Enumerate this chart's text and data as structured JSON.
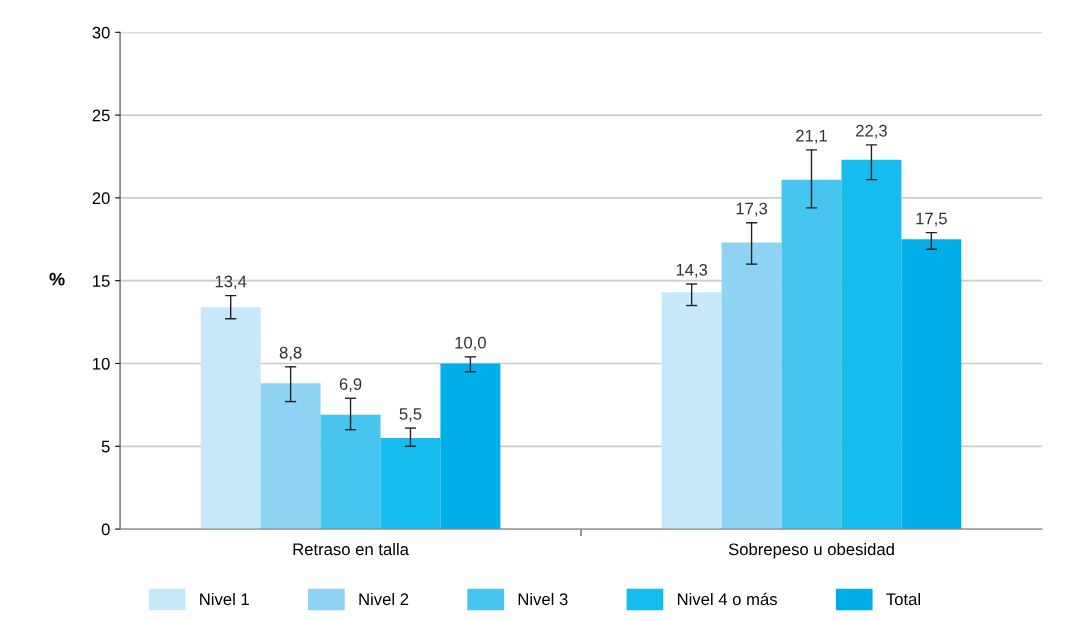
{
  "chart_data": {
    "type": "bar",
    "ylabel": "%",
    "categories": [
      "Retraso en talla",
      "Sobrepeso u obesidad"
    ],
    "series": [
      {
        "name": "Nivel 1",
        "color": "#c7e8f8",
        "values": [
          13.4,
          14.3
        ],
        "value_labels": [
          "13,4",
          "14,3"
        ],
        "errors": [
          [
            12.7,
            14.1
          ],
          [
            13.5,
            14.8
          ]
        ]
      },
      {
        "name": "Nivel 2",
        "color": "#8fd3f4",
        "values": [
          8.8,
          17.3
        ],
        "value_labels": [
          "8,8",
          "17,3"
        ],
        "errors": [
          [
            7.7,
            9.8
          ],
          [
            16.0,
            18.5
          ]
        ]
      },
      {
        "name": "Nivel 3",
        "color": "#45c5f0",
        "values": [
          6.9,
          21.1
        ],
        "value_labels": [
          "6,9",
          "21,1"
        ],
        "errors": [
          [
            6.0,
            7.9
          ],
          [
            19.4,
            22.9
          ]
        ]
      },
      {
        "name": "Nivel 4 o más",
        "color": "#17bcef",
        "values": [
          5.5,
          22.3
        ],
        "value_labels": [
          "5,5",
          "22,3"
        ],
        "errors": [
          [
            5.0,
            6.1
          ],
          [
            21.1,
            23.2
          ]
        ]
      },
      {
        "name": "Total",
        "color": "#00aee8",
        "values": [
          10.0,
          17.5
        ],
        "value_labels": [
          "10,0",
          "17,5"
        ],
        "errors": [
          [
            9.5,
            10.4
          ],
          [
            16.9,
            17.9
          ]
        ]
      }
    ],
    "ylim": [
      0,
      30
    ],
    "yticks": [
      0,
      5,
      10,
      15,
      20,
      25,
      30
    ],
    "grid": "y",
    "legend": "bottom"
  }
}
